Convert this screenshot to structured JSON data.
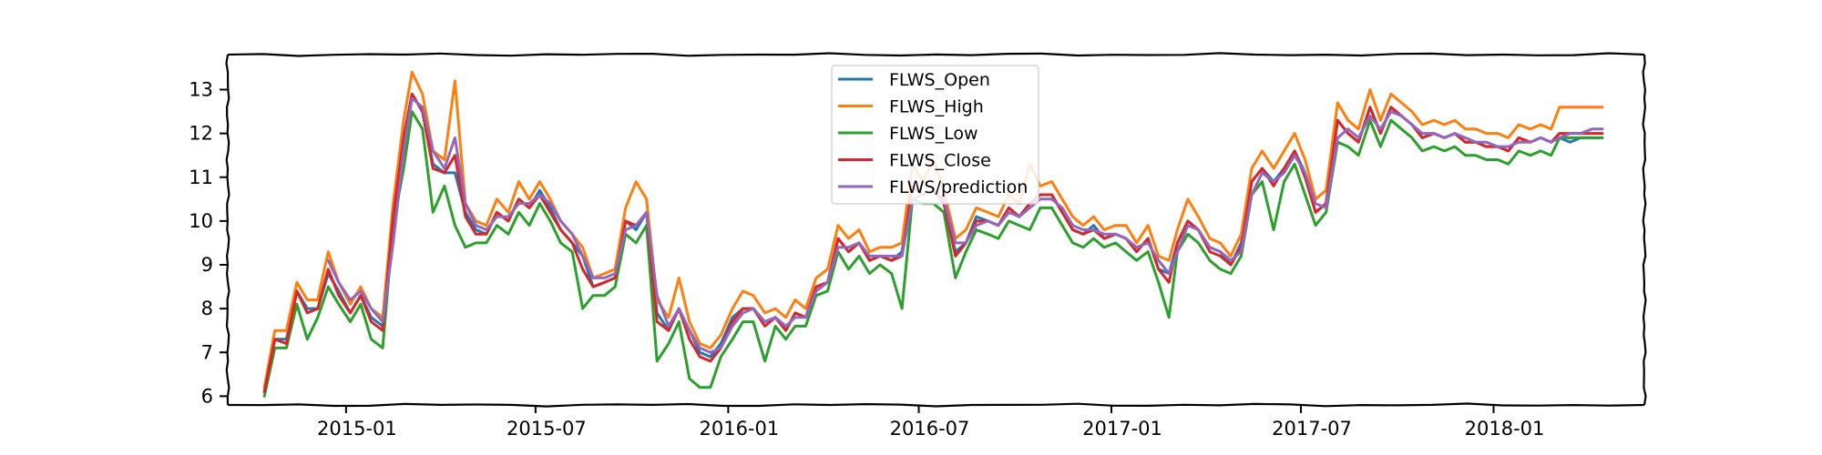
{
  "chart_data": {
    "type": "line",
    "x_type": "date",
    "xlim": [
      "2014-09-10",
      "2018-05-25"
    ],
    "ylim": [
      5.8,
      13.8
    ],
    "x_ticks": [
      {
        "date": "2015-01-01",
        "label": "2015-01"
      },
      {
        "date": "2015-07-01",
        "label": "2015-07"
      },
      {
        "date": "2016-01-01",
        "label": "2016-01"
      },
      {
        "date": "2016-07-01",
        "label": "2016-07"
      },
      {
        "date": "2017-01-01",
        "label": "2017-01"
      },
      {
        "date": "2017-07-01",
        "label": "2017-07"
      },
      {
        "date": "2018-01-01",
        "label": "2018-01"
      }
    ],
    "y_ticks": [
      6,
      7,
      8,
      9,
      10,
      11,
      12,
      13
    ],
    "grid": false,
    "legend_position": "top-center",
    "x": [
      "2014-10-15",
      "2014-10-25",
      "2014-11-05",
      "2014-11-15",
      "2014-11-25",
      "2014-12-05",
      "2014-12-15",
      "2014-12-25",
      "2015-01-05",
      "2015-01-15",
      "2015-01-25",
      "2015-02-05",
      "2015-02-15",
      "2015-02-25",
      "2015-03-05",
      "2015-03-15",
      "2015-03-25",
      "2015-04-05",
      "2015-04-15",
      "2015-04-25",
      "2015-05-05",
      "2015-05-15",
      "2015-05-25",
      "2015-06-05",
      "2015-06-15",
      "2015-06-25",
      "2015-07-05",
      "2015-07-15",
      "2015-07-25",
      "2015-08-05",
      "2015-08-15",
      "2015-08-25",
      "2015-09-05",
      "2015-09-15",
      "2015-09-25",
      "2015-10-05",
      "2015-10-15",
      "2015-10-25",
      "2015-11-05",
      "2015-11-15",
      "2015-11-25",
      "2015-12-05",
      "2015-12-15",
      "2015-12-25",
      "2016-01-05",
      "2016-01-15",
      "2016-01-25",
      "2016-02-05",
      "2016-02-15",
      "2016-02-25",
      "2016-03-05",
      "2016-03-15",
      "2016-03-25",
      "2016-04-05",
      "2016-04-15",
      "2016-04-25",
      "2016-05-05",
      "2016-05-15",
      "2016-05-25",
      "2016-06-05",
      "2016-06-15",
      "2016-06-25",
      "2016-07-05",
      "2016-07-15",
      "2016-07-25",
      "2016-08-05",
      "2016-08-15",
      "2016-08-25",
      "2016-09-05",
      "2016-09-15",
      "2016-09-25",
      "2016-10-05",
      "2016-10-15",
      "2016-10-25",
      "2016-11-05",
      "2016-11-15",
      "2016-11-25",
      "2016-12-05",
      "2016-12-15",
      "2016-12-25",
      "2017-01-05",
      "2017-01-15",
      "2017-01-25",
      "2017-02-05",
      "2017-02-15",
      "2017-02-25",
      "2017-03-05",
      "2017-03-15",
      "2017-03-25",
      "2017-04-05",
      "2017-04-15",
      "2017-04-25",
      "2017-05-05",
      "2017-05-15",
      "2017-05-25",
      "2017-06-05",
      "2017-06-15",
      "2017-06-25",
      "2017-07-05",
      "2017-07-15",
      "2017-07-25",
      "2017-08-05",
      "2017-08-15",
      "2017-08-25",
      "2017-09-05",
      "2017-09-15",
      "2017-09-25",
      "2017-10-05",
      "2017-10-15",
      "2017-10-25",
      "2017-11-05",
      "2017-11-15",
      "2017-11-25",
      "2017-12-05",
      "2017-12-15",
      "2017-12-25",
      "2018-01-05",
      "2018-01-15",
      "2018-01-25",
      "2018-02-05",
      "2018-02-15",
      "2018-02-25",
      "2018-03-05",
      "2018-03-15",
      "2018-03-25",
      "2018-04-05",
      "2018-04-15"
    ],
    "series": [
      {
        "name": "FLWS_Open",
        "color": "#1f77b4",
        "values": [
          6.1,
          7.3,
          7.3,
          8.4,
          8.0,
          8.0,
          8.8,
          8.4,
          7.9,
          8.3,
          7.8,
          7.6,
          10.1,
          11.9,
          12.9,
          12.5,
          11.3,
          11.1,
          11.1,
          10.2,
          9.8,
          9.7,
          10.2,
          10.0,
          10.5,
          10.3,
          10.7,
          10.3,
          9.8,
          9.5,
          9.2,
          8.5,
          8.6,
          8.7,
          10.0,
          9.8,
          10.2,
          7.9,
          7.5,
          8.0,
          7.5,
          7.0,
          6.9,
          7.2,
          7.8,
          8.0,
          8.0,
          7.7,
          7.8,
          7.5,
          7.9,
          7.8,
          8.5,
          8.6,
          9.6,
          9.3,
          9.5,
          9.1,
          9.2,
          9.1,
          9.3,
          10.8,
          10.6,
          10.7,
          10.4,
          9.3,
          9.5,
          10.1,
          10.0,
          9.9,
          10.3,
          10.1,
          10.4,
          10.6,
          10.6,
          10.2,
          9.8,
          9.7,
          9.9,
          9.6,
          9.7,
          9.6,
          9.3,
          9.6,
          8.9,
          8.8,
          9.5,
          10.0,
          9.8,
          9.4,
          9.3,
          9.0,
          9.5,
          10.9,
          11.2,
          10.9,
          11.2,
          11.6,
          11.1,
          10.2,
          10.4,
          12.3,
          12.0,
          11.8,
          12.6,
          12.0,
          12.6,
          12.4,
          12.2,
          11.9,
          12.0,
          11.9,
          12.0,
          11.8,
          11.8,
          11.7,
          11.7,
          11.6,
          11.9,
          11.8,
          11.9,
          11.8,
          11.9,
          11.8,
          11.9,
          11.9,
          11.9
        ]
      },
      {
        "name": "FLWS_High",
        "color": "#ff7f0e",
        "values": [
          6.2,
          7.5,
          7.5,
          8.6,
          8.2,
          8.2,
          9.3,
          8.6,
          8.1,
          8.5,
          8.0,
          7.8,
          10.4,
          12.3,
          13.4,
          12.9,
          11.6,
          11.4,
          13.2,
          10.4,
          10.0,
          9.9,
          10.5,
          10.2,
          10.9,
          10.5,
          10.9,
          10.5,
          10.0,
          9.7,
          9.4,
          8.7,
          8.8,
          8.9,
          10.3,
          10.9,
          10.5,
          8.2,
          7.8,
          8.7,
          7.7,
          7.2,
          7.1,
          7.4,
          8.0,
          8.4,
          8.3,
          7.9,
          8.0,
          7.8,
          8.2,
          8.0,
          8.7,
          8.9,
          9.9,
          9.6,
          9.8,
          9.3,
          9.4,
          9.4,
          9.5,
          11.3,
          10.9,
          11.4,
          10.7,
          9.6,
          9.8,
          10.3,
          10.2,
          10.1,
          10.6,
          10.4,
          11.3,
          10.8,
          10.9,
          10.5,
          10.1,
          9.9,
          10.1,
          9.8,
          9.9,
          9.9,
          9.5,
          9.9,
          9.2,
          9.1,
          9.8,
          10.5,
          10.1,
          9.6,
          9.5,
          9.2,
          9.7,
          11.2,
          11.6,
          11.2,
          11.6,
          12.0,
          11.4,
          10.5,
          10.7,
          12.7,
          12.3,
          12.1,
          13.0,
          12.3,
          12.9,
          12.7,
          12.5,
          12.2,
          12.3,
          12.2,
          12.3,
          12.1,
          12.1,
          12.0,
          12.0,
          11.9,
          12.2,
          12.1,
          12.2,
          12.1,
          12.6,
          12.6,
          12.6,
          12.6,
          12.6
        ]
      },
      {
        "name": "FLWS_Low",
        "color": "#2ca02c",
        "values": [
          6.0,
          7.1,
          7.1,
          8.1,
          7.3,
          7.8,
          8.5,
          8.1,
          7.7,
          8.1,
          7.3,
          7.1,
          9.9,
          11.2,
          12.5,
          12.1,
          10.2,
          10.8,
          9.9,
          9.4,
          9.5,
          9.5,
          9.9,
          9.7,
          10.2,
          9.9,
          10.4,
          10.0,
          9.5,
          9.3,
          8.0,
          8.3,
          8.3,
          8.5,
          9.7,
          9.5,
          9.9,
          6.8,
          7.2,
          7.7,
          6.4,
          6.2,
          6.2,
          6.9,
          7.3,
          7.7,
          7.7,
          6.8,
          7.6,
          7.3,
          7.6,
          7.6,
          8.3,
          8.4,
          9.3,
          8.9,
          9.2,
          8.8,
          9.0,
          8.8,
          8.0,
          10.5,
          10.4,
          10.4,
          10.2,
          8.7,
          9.3,
          9.8,
          9.7,
          9.6,
          10.0,
          9.9,
          9.8,
          10.3,
          10.3,
          9.9,
          9.5,
          9.4,
          9.6,
          9.4,
          9.5,
          9.3,
          9.1,
          9.3,
          8.6,
          7.8,
          9.3,
          9.7,
          9.5,
          9.1,
          8.9,
          8.8,
          9.2,
          10.6,
          10.9,
          9.8,
          10.9,
          11.3,
          10.6,
          9.9,
          10.2,
          11.8,
          11.7,
          11.5,
          12.3,
          11.7,
          12.3,
          12.1,
          11.9,
          11.6,
          11.7,
          11.6,
          11.7,
          11.5,
          11.5,
          11.4,
          11.4,
          11.3,
          11.6,
          11.5,
          11.6,
          11.5,
          11.9,
          11.9,
          11.9,
          11.9,
          11.9
        ]
      },
      {
        "name": "FLWS_Close",
        "color": "#d62728",
        "values": [
          6.1,
          7.3,
          7.2,
          8.4,
          7.9,
          8.0,
          8.9,
          8.3,
          7.9,
          8.3,
          7.7,
          7.5,
          10.1,
          11.9,
          12.9,
          12.5,
          11.2,
          11.1,
          11.5,
          10.1,
          9.7,
          9.7,
          10.2,
          10.0,
          10.5,
          10.3,
          10.6,
          10.2,
          9.8,
          9.5,
          8.9,
          8.5,
          8.6,
          8.7,
          10.0,
          9.9,
          10.2,
          7.7,
          7.5,
          8.0,
          7.3,
          6.9,
          6.8,
          7.1,
          7.7,
          8.0,
          8.0,
          7.6,
          7.8,
          7.5,
          7.9,
          7.8,
          8.5,
          8.6,
          9.6,
          9.3,
          9.5,
          9.1,
          9.2,
          9.1,
          9.2,
          10.8,
          10.6,
          10.7,
          10.4,
          9.2,
          9.5,
          10.0,
          10.0,
          9.9,
          10.3,
          10.1,
          10.4,
          10.6,
          10.6,
          10.2,
          9.8,
          9.7,
          9.8,
          9.6,
          9.7,
          9.6,
          9.3,
          9.6,
          8.9,
          8.6,
          9.5,
          10.0,
          9.8,
          9.3,
          9.2,
          9.0,
          9.4,
          10.9,
          11.2,
          10.8,
          11.2,
          11.6,
          11.0,
          10.2,
          10.4,
          12.3,
          12.0,
          11.8,
          12.6,
          12.0,
          12.6,
          12.4,
          12.2,
          11.9,
          12.0,
          11.9,
          12.0,
          11.8,
          11.8,
          11.7,
          11.7,
          11.6,
          11.9,
          11.8,
          11.9,
          11.8,
          12.0,
          12.0,
          12.0,
          12.0,
          12.0
        ]
      },
      {
        "name": "FLWS/prediction",
        "color": "#9467bd",
        "values": [
          null,
          null,
          null,
          null,
          null,
          null,
          9.1,
          8.6,
          8.2,
          8.4,
          8.0,
          7.7,
          9.5,
          11.6,
          12.8,
          12.6,
          11.6,
          11.2,
          11.9,
          10.4,
          9.9,
          9.8,
          10.1,
          10.1,
          10.4,
          10.4,
          10.6,
          10.4,
          10.0,
          9.7,
          9.2,
          8.7,
          8.7,
          8.8,
          9.8,
          9.9,
          10.2,
          8.3,
          7.6,
          8.0,
          7.5,
          7.1,
          7.0,
          7.1,
          7.6,
          7.9,
          8.0,
          7.7,
          7.8,
          7.6,
          7.8,
          7.8,
          8.4,
          8.6,
          9.4,
          9.4,
          9.5,
          9.2,
          9.2,
          9.2,
          9.2,
          10.5,
          10.6,
          10.7,
          10.5,
          9.5,
          9.5,
          9.9,
          10.0,
          9.9,
          10.2,
          10.1,
          10.3,
          10.5,
          10.5,
          10.3,
          9.9,
          9.8,
          9.8,
          9.7,
          9.7,
          9.6,
          9.4,
          9.5,
          9.1,
          8.8,
          9.3,
          9.9,
          9.8,
          9.4,
          9.3,
          9.1,
          9.3,
          10.6,
          11.1,
          10.9,
          11.1,
          11.5,
          11.1,
          10.4,
          10.3,
          11.9,
          12.1,
          11.9,
          12.4,
          12.1,
          12.5,
          12.4,
          12.2,
          12.0,
          12.0,
          11.9,
          12.0,
          11.9,
          11.8,
          11.8,
          11.7,
          11.7,
          11.8,
          11.8,
          11.9,
          11.8,
          11.9,
          12.0,
          12.0,
          12.1,
          12.1
        ]
      }
    ]
  }
}
